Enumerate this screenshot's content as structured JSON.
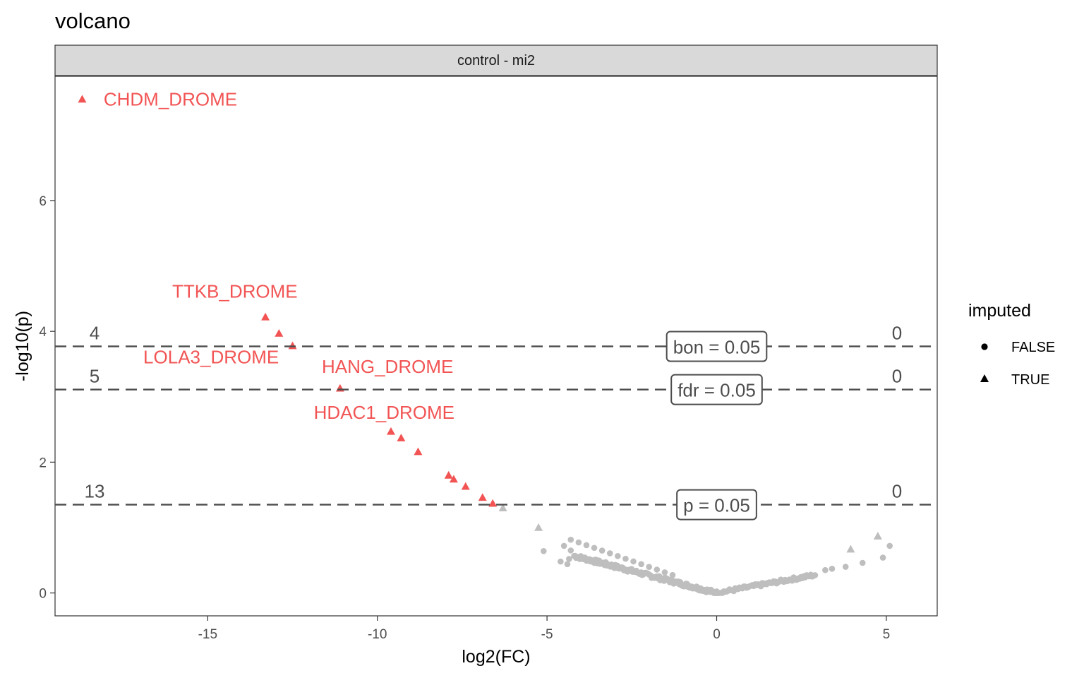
{
  "title": "volcano",
  "colors": {
    "significant": "#f25454",
    "nonsignificant": "#bebebe",
    "threshold": "#4d4d4d"
  },
  "chart_data": {
    "type": "scatter",
    "facet": "control - mi2",
    "xlabel": "log2(FC)",
    "ylabel": "-log10(p)",
    "xlim": [
      -19.5,
      6.5
    ],
    "ylim": [
      -0.35,
      7.9
    ],
    "xticks": [
      -15,
      -10,
      -5,
      0,
      5
    ],
    "yticks": [
      0,
      2,
      4,
      6
    ],
    "grid": false,
    "legend": {
      "title": "imputed",
      "position": "right",
      "entries": [
        {
          "label": "FALSE",
          "shape": "circle"
        },
        {
          "label": "TRUE",
          "shape": "triangle"
        }
      ]
    },
    "thresholds": [
      {
        "label": "bon = 0.05",
        "y": 3.77,
        "x": 0,
        "count_left": "4",
        "count_right": "0"
      },
      {
        "label": "fdr = 0.05",
        "y": 3.11,
        "x": 0,
        "count_left": "5",
        "count_right": "0"
      },
      {
        "label": "p = 0.05",
        "y": 1.35,
        "x": 0,
        "count_left": "13",
        "count_right": "0"
      }
    ],
    "significant_points": [
      {
        "x": -18.7,
        "y": 7.55,
        "imputed": true
      },
      {
        "x": -13.3,
        "y": 4.22,
        "imputed": true
      },
      {
        "x": -12.9,
        "y": 3.97,
        "imputed": true
      },
      {
        "x": -12.5,
        "y": 3.78,
        "imputed": true
      },
      {
        "x": -11.1,
        "y": 3.13,
        "imputed": true
      },
      {
        "x": -9.6,
        "y": 2.47,
        "imputed": true
      },
      {
        "x": -9.3,
        "y": 2.37,
        "imputed": true
      },
      {
        "x": -8.8,
        "y": 2.16,
        "imputed": true
      },
      {
        "x": -7.9,
        "y": 1.8,
        "imputed": true
      },
      {
        "x": -7.75,
        "y": 1.74,
        "imputed": true
      },
      {
        "x": -7.4,
        "y": 1.63,
        "imputed": true
      },
      {
        "x": -6.9,
        "y": 1.46,
        "imputed": true
      },
      {
        "x": -6.6,
        "y": 1.37,
        "imputed": true
      }
    ],
    "labels": [
      {
        "text": "CHDM_DROME",
        "x": -16.1,
        "y": 7.55
      },
      {
        "text": "TTKB_DROME",
        "x": -14.2,
        "y": 4.61
      },
      {
        "text": "LOLA3_DROME",
        "x": -14.9,
        "y": 3.61
      },
      {
        "text": "HANG_DROME",
        "x": -9.7,
        "y": 3.46
      },
      {
        "text": "HDAC1_DROME",
        "x": -9.8,
        "y": 2.76
      }
    ],
    "other_triangles": [
      {
        "x": -6.3,
        "y": 1.3
      },
      {
        "x": -5.25,
        "y": 1.0
      },
      {
        "x": 3.95,
        "y": 0.67
      },
      {
        "x": 4.75,
        "y": 0.87
      }
    ],
    "other_circles": [
      {
        "x": 5.1,
        "y": 0.72
      },
      {
        "x": 4.9,
        "y": 0.54
      },
      {
        "x": 4.3,
        "y": 0.46
      },
      {
        "x": 3.8,
        "y": 0.4
      },
      {
        "x": 3.4,
        "y": 0.37
      },
      {
        "x": 3.2,
        "y": 0.35
      },
      {
        "x": -4.3,
        "y": 0.65
      },
      {
        "x": -4.35,
        "y": 0.52
      },
      {
        "x": -4.4,
        "y": 0.44
      },
      {
        "x": -4.5,
        "y": 0.72
      },
      {
        "x": -4.6,
        "y": 0.48
      },
      {
        "x": -5.1,
        "y": 0.64
      }
    ]
  }
}
